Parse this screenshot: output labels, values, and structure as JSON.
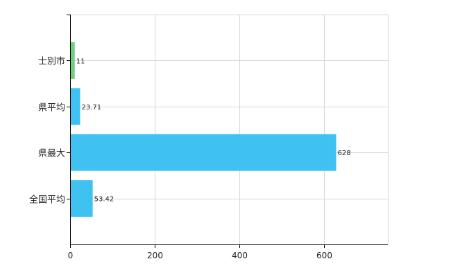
{
  "chart_data": {
    "type": "bar",
    "orientation": "horizontal",
    "categories": [
      "士別市",
      "県平均",
      "県最大",
      "全国平均"
    ],
    "values": [
      11,
      23.71,
      628,
      53.42
    ],
    "value_labels": [
      "11",
      "23.71",
      "628",
      "53.42"
    ],
    "colors": [
      "#6fcf7f",
      "#3fc2f2",
      "#3fc2f2",
      "#3fc2f2"
    ],
    "xlim": [
      0,
      750
    ],
    "xticks": [
      0,
      200,
      400,
      600
    ],
    "grid": true,
    "legend": "none"
  }
}
